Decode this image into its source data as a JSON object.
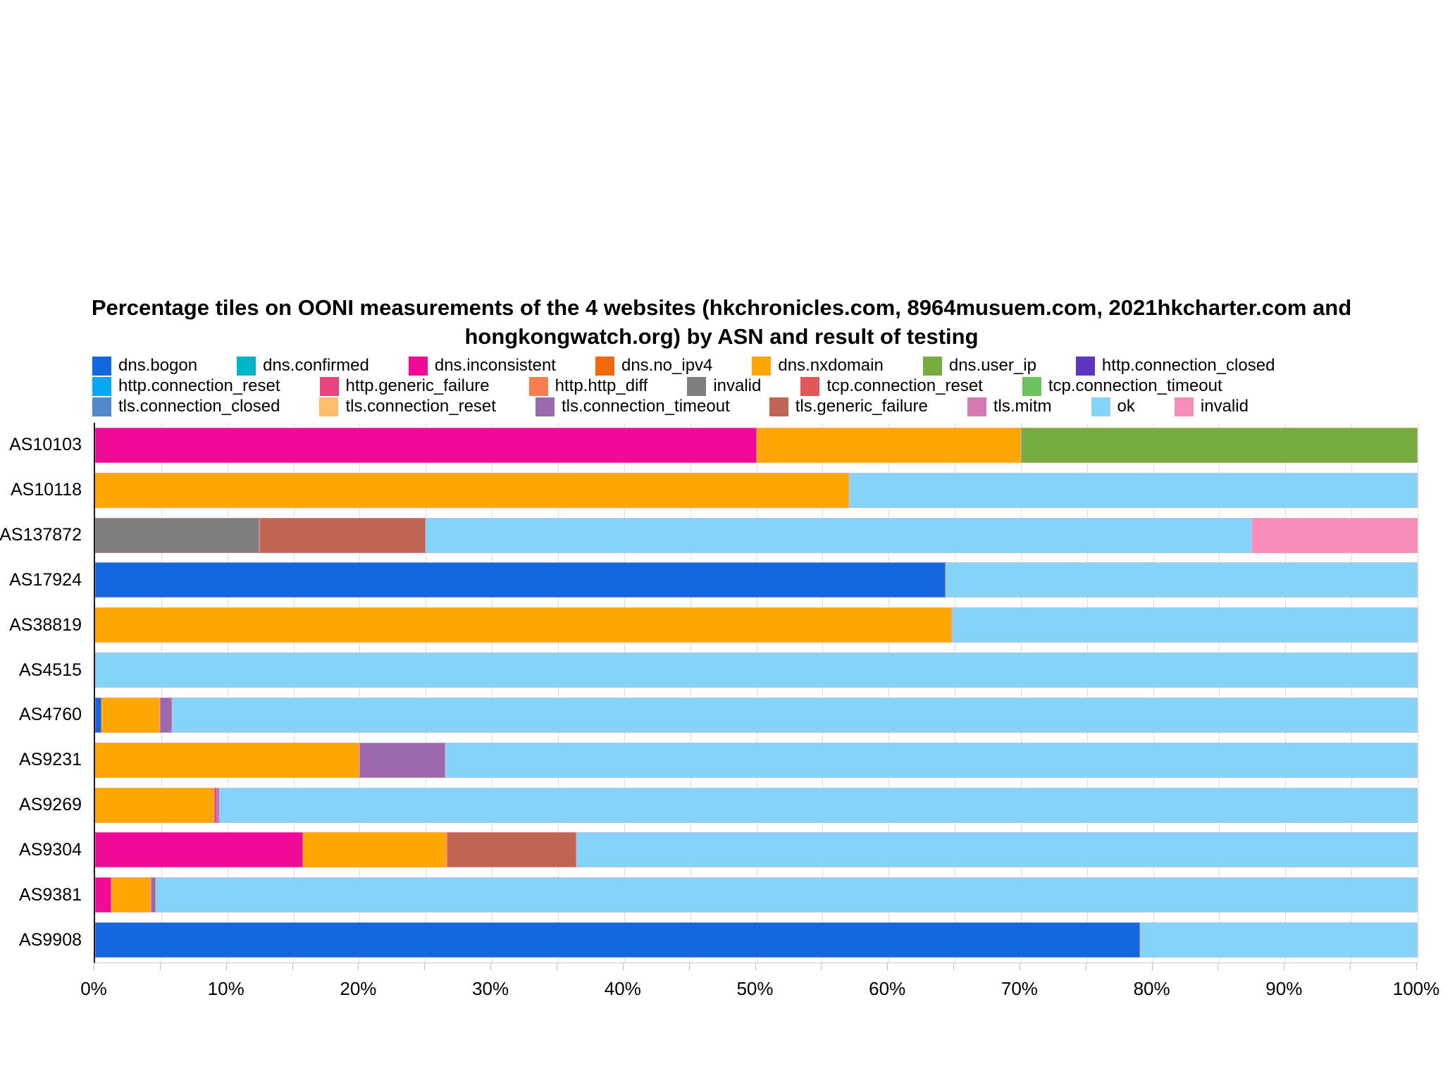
{
  "title": {
    "line1": "Percentage tiles on OONI measurements of the 4 websites (hkchronicles.com, 8964musuem.com,  2021hkcharter.com and",
    "line2": "hongkongwatch.org) by ASN and result of testing"
  },
  "palette": {
    "dns.bogon": "#1467df",
    "dns.confirmed": "#00b5c7",
    "dns.inconsistent": "#ef0b95",
    "dns.no_ipv4": "#f06a0a",
    "dns.nxdomain": "#fea702",
    "dns.user_ip": "#77ac41",
    "http.connection_closed": "#5d36bd",
    "http.connection_reset": "#06a6f1",
    "http.generic_failure": "#e8437e",
    "http.http_diff": "#f97e4f",
    "invalid": "#7e7e7e",
    "tcp.connection_reset": "#e25757",
    "tcp.connection_timeout": "#6cc25e",
    "tls.connection_closed": "#5289ca",
    "tls.connection_reset": "#fcbe6a",
    "tls.connection_timeout": "#9d69ad",
    "tls.generic_failure": "#c06553",
    "tls.mitm": "#d678b2",
    "ok": "#85d3f7",
    "invalid2": "#f58cb9"
  },
  "legend": {
    "labels": {
      "dns.bogon": "dns.bogon",
      "dns.confirmed": "dns.confirmed",
      "dns.inconsistent": "dns.inconsistent",
      "dns.no_ipv4": "dns.no_ipv4",
      "dns.nxdomain": "dns.nxdomain",
      "dns.user_ip": "dns.user_ip",
      "http.connection_closed": "http.connection_closed",
      "http.connection_reset": "http.connection_reset",
      "http.generic_failure": "http.generic_failure",
      "http.http_diff": "http.http_diff",
      "invalid": "invalid",
      "tcp.connection_reset": "tcp.connection_reset",
      "tcp.connection_timeout": "tcp.connection_timeout",
      "tls.connection_closed": "tls.connection_closed",
      "tls.connection_reset": "tls.connection_reset",
      "tls.connection_timeout": "tls.connection_timeout",
      "tls.generic_failure": "tls.generic_failure",
      "tls.mitm": "tls.mitm",
      "ok": "ok",
      "invalid2": "invalid"
    },
    "rows": [
      [
        "dns.bogon",
        "dns.confirmed",
        "dns.inconsistent",
        "dns.no_ipv4",
        "dns.nxdomain",
        "dns.user_ip",
        "http.connection_closed"
      ],
      [
        "http.connection_reset",
        "http.generic_failure",
        "http.http_diff",
        "invalid",
        "tcp.connection_reset",
        "tcp.connection_timeout"
      ],
      [
        "tls.connection_closed",
        "tls.connection_reset",
        "tls.connection_timeout",
        "tls.generic_failure",
        "tls.mitm",
        "ok",
        "invalid2"
      ]
    ]
  },
  "axis": {
    "tick_labels": [
      "0%",
      "10%",
      "20%",
      "30%",
      "40%",
      "50%",
      "60%",
      "70%",
      "80%",
      "90%",
      "100%"
    ],
    "label_step_pct": 10,
    "grid_step_pct": 5,
    "min_pct": 0,
    "max_pct": 100
  },
  "rows": [
    {
      "label": "AS10103",
      "segments": [
        [
          "dns.inconsistent",
          50
        ],
        [
          "dns.nxdomain",
          20
        ],
        [
          "dns.user_ip",
          30
        ]
      ]
    },
    {
      "label": "AS10118",
      "segments": [
        [
          "dns.nxdomain",
          57
        ],
        [
          "ok",
          43
        ]
      ]
    },
    {
      "label": "AS137872",
      "segments": [
        [
          "invalid",
          12.4
        ],
        [
          "tls.generic_failure",
          12.6
        ],
        [
          "ok",
          62.5
        ],
        [
          "invalid2",
          12.5
        ]
      ]
    },
    {
      "label": "AS17924",
      "segments": [
        [
          "dns.bogon",
          64.3
        ],
        [
          "ok",
          35.7
        ]
      ]
    },
    {
      "label": "AS38819",
      "segments": [
        [
          "dns.nxdomain",
          64.8
        ],
        [
          "ok",
          35.2
        ]
      ]
    },
    {
      "label": "AS4515",
      "segments": [
        [
          "ok",
          100
        ]
      ]
    },
    {
      "label": "AS4760",
      "segments": [
        [
          "dns.bogon",
          0.5
        ],
        [
          "dns.nxdomain",
          4.4
        ],
        [
          "tls.connection_timeout",
          0.9
        ],
        [
          "ok",
          94.2
        ]
      ]
    },
    {
      "label": "AS9231",
      "segments": [
        [
          "dns.nxdomain",
          20
        ],
        [
          "tls.connection_timeout",
          6.5
        ],
        [
          "ok",
          73.5
        ]
      ]
    },
    {
      "label": "AS9269",
      "segments": [
        [
          "dns.nxdomain",
          9
        ],
        [
          "http.generic_failure",
          0.2
        ],
        [
          "tls.connection_timeout",
          0.2
        ],
        [
          "ok",
          90.6
        ]
      ]
    },
    {
      "label": "AS9304",
      "segments": [
        [
          "dns.inconsistent",
          15.7
        ],
        [
          "dns.nxdomain",
          10.9
        ],
        [
          "tls.generic_failure",
          9.8
        ],
        [
          "ok",
          63.6
        ]
      ]
    },
    {
      "label": "AS9381",
      "segments": [
        [
          "dns.inconsistent",
          1.2
        ],
        [
          "dns.nxdomain",
          3
        ],
        [
          "tls.connection_timeout",
          0.4
        ],
        [
          "ok",
          95.4
        ]
      ]
    },
    {
      "label": "AS9908",
      "segments": [
        [
          "dns.bogon",
          79
        ],
        [
          "ok",
          21
        ]
      ]
    }
  ],
  "chart_data": {
    "type": "bar",
    "orientation": "horizontal-stacked",
    "title": "Percentage tiles on OONI measurements of the 4 websites (hkchronicles.com, 8964musuem.com, 2021hkcharter.com and hongkongwatch.org) by ASN and result of testing",
    "xlabel": "",
    "ylabel": "",
    "xlim": [
      0,
      100
    ],
    "x_tick_labels": [
      "0%",
      "10%",
      "20%",
      "30%",
      "40%",
      "50%",
      "60%",
      "70%",
      "80%",
      "90%",
      "100%"
    ],
    "grid": true,
    "legend_position": "top",
    "categories": [
      "AS10103",
      "AS10118",
      "AS137872",
      "AS17924",
      "AS38819",
      "AS4515",
      "AS4760",
      "AS9231",
      "AS9269",
      "AS9304",
      "AS9381",
      "AS9908"
    ],
    "series": [
      {
        "name": "dns.bogon",
        "values": [
          0,
          0,
          0,
          64.3,
          0,
          0,
          0.5,
          0,
          0,
          0,
          0,
          79
        ]
      },
      {
        "name": "dns.confirmed",
        "values": [
          0,
          0,
          0,
          0,
          0,
          0,
          0,
          0,
          0,
          0,
          0,
          0
        ]
      },
      {
        "name": "dns.inconsistent",
        "values": [
          50,
          0,
          0,
          0,
          0,
          0,
          0,
          0,
          0,
          15.7,
          1.2,
          0
        ]
      },
      {
        "name": "dns.no_ipv4",
        "values": [
          0,
          0,
          0,
          0,
          0,
          0,
          0,
          0,
          0,
          0,
          0,
          0
        ]
      },
      {
        "name": "dns.nxdomain",
        "values": [
          20,
          57,
          0,
          0,
          64.8,
          0,
          4.4,
          20,
          9,
          10.9,
          3,
          0
        ]
      },
      {
        "name": "dns.user_ip",
        "values": [
          30,
          0,
          0,
          0,
          0,
          0,
          0,
          0,
          0,
          0,
          0,
          0
        ]
      },
      {
        "name": "http.connection_closed",
        "values": [
          0,
          0,
          0,
          0,
          0,
          0,
          0,
          0,
          0,
          0,
          0,
          0
        ]
      },
      {
        "name": "http.connection_reset",
        "values": [
          0,
          0,
          0,
          0,
          0,
          0,
          0,
          0,
          0,
          0,
          0,
          0
        ]
      },
      {
        "name": "http.generic_failure",
        "values": [
          0,
          0,
          0,
          0,
          0,
          0,
          0,
          0,
          0.2,
          0,
          0,
          0
        ]
      },
      {
        "name": "http.http_diff",
        "values": [
          0,
          0,
          0,
          0,
          0,
          0,
          0,
          0,
          0,
          0,
          0,
          0
        ]
      },
      {
        "name": "invalid",
        "values": [
          0,
          0,
          12.4,
          0,
          0,
          0,
          0,
          0,
          0,
          0,
          0,
          0
        ]
      },
      {
        "name": "tcp.connection_reset",
        "values": [
          0,
          0,
          0,
          0,
          0,
          0,
          0,
          0,
          0,
          0,
          0,
          0
        ]
      },
      {
        "name": "tcp.connection_timeout",
        "values": [
          0,
          0,
          0,
          0,
          0,
          0,
          0,
          0,
          0,
          0,
          0,
          0
        ]
      },
      {
        "name": "tls.connection_closed",
        "values": [
          0,
          0,
          0,
          0,
          0,
          0,
          0,
          0,
          0,
          0,
          0,
          0
        ]
      },
      {
        "name": "tls.connection_reset",
        "values": [
          0,
          0,
          0,
          0,
          0,
          0,
          0,
          0,
          0,
          0,
          0,
          0
        ]
      },
      {
        "name": "tls.connection_timeout",
        "values": [
          0,
          0,
          0,
          0,
          0,
          0,
          0.9,
          6.5,
          0.2,
          0,
          0.4,
          0
        ]
      },
      {
        "name": "tls.generic_failure",
        "values": [
          0,
          0,
          12.6,
          0,
          0,
          0,
          0,
          0,
          0,
          9.8,
          0,
          0
        ]
      },
      {
        "name": "tls.mitm",
        "values": [
          0,
          0,
          0,
          0,
          0,
          0,
          0,
          0,
          0,
          0,
          0,
          0
        ]
      },
      {
        "name": "ok",
        "values": [
          0,
          43,
          62.5,
          35.7,
          35.2,
          100,
          94.2,
          73.5,
          90.6,
          63.6,
          95.4,
          21
        ]
      },
      {
        "name": "invalid (pink)",
        "values": [
          0,
          0,
          12.5,
          0,
          0,
          0,
          0,
          0,
          0,
          0,
          0,
          0
        ]
      }
    ]
  }
}
